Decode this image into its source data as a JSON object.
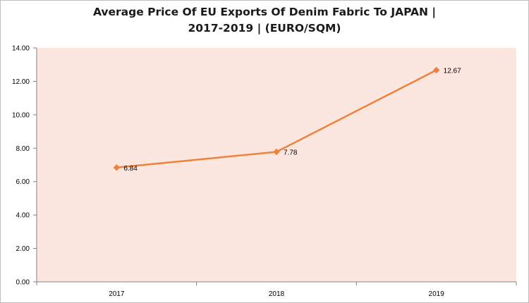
{
  "chart_data": {
    "type": "line",
    "title_line1": "Average Price Of EU Exports Of Denim Fabric To JAPAN |",
    "title_line2": "2017-2019  | (EURO/SQM)",
    "categories": [
      "2017",
      "2018",
      "2019"
    ],
    "series": [
      {
        "values": [
          6.84,
          7.78,
          12.67
        ],
        "data_labels": [
          "6.84",
          "7.78",
          "12.67"
        ]
      }
    ],
    "y_ticks": [
      "0.00",
      "2.00",
      "4.00",
      "6.00",
      "8.00",
      "10.00",
      "12.00",
      "14.00"
    ],
    "ylim": [
      0,
      14
    ],
    "grid": false,
    "legend": "none"
  },
  "colors": {
    "plot_background": "#fbe7e0",
    "line": "#f0813a",
    "axis": "#808080"
  }
}
